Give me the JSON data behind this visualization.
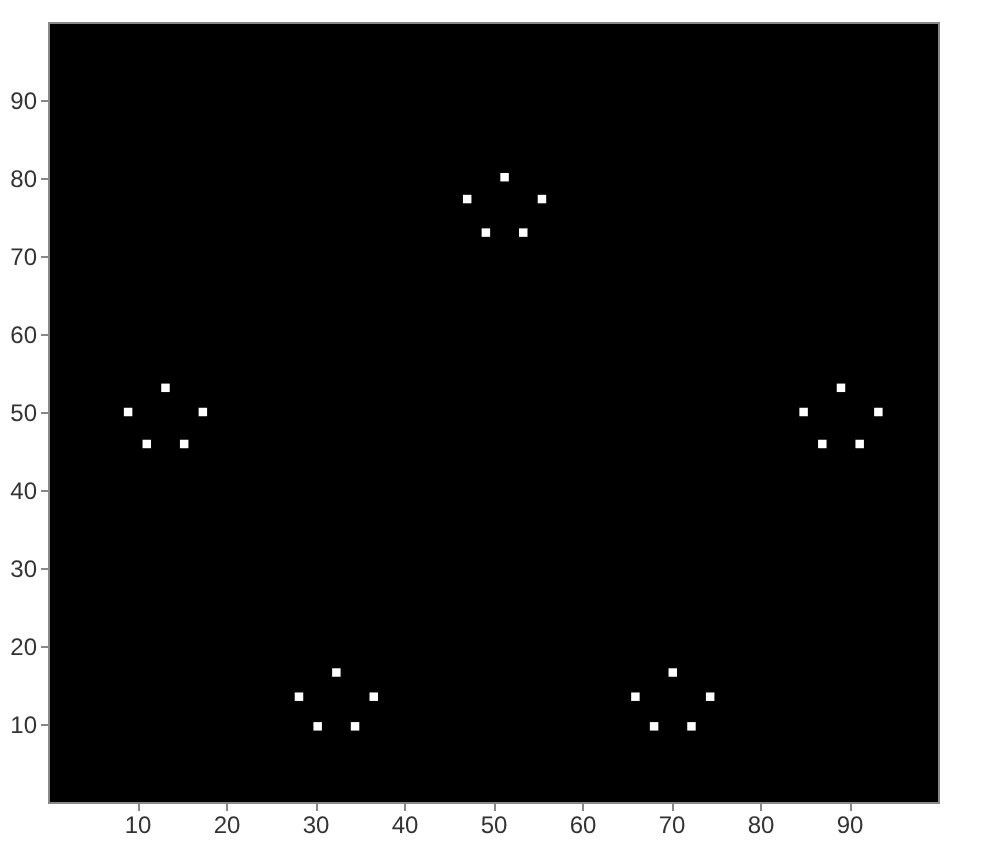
{
  "chart_data": {
    "type": "scatter",
    "marker": "square",
    "color": "#ffffff",
    "x": [
      51.3,
      47.1,
      55.5,
      49.2,
      53.4,
      13.2,
      9.0,
      17.4,
      11.1,
      15.3,
      89.1,
      84.9,
      93.3,
      87.0,
      91.2,
      32.4,
      28.2,
      36.6,
      30.3,
      34.5,
      70.2,
      66.0,
      74.4,
      68.1,
      72.3
    ],
    "values": [
      80.1,
      77.3,
      77.3,
      73.0,
      73.0,
      53.1,
      50.0,
      50.0,
      45.9,
      45.9,
      53.1,
      50.0,
      50.0,
      45.9,
      45.9,
      16.6,
      13.5,
      13.5,
      9.7,
      9.7,
      16.6,
      13.5,
      13.5,
      9.7,
      9.7
    ],
    "xlim": [
      0,
      100
    ],
    "ylim": [
      0,
      100
    ],
    "xticks": [
      10,
      20,
      30,
      40,
      50,
      60,
      70,
      80,
      90
    ],
    "yticks": [
      10,
      20,
      30,
      40,
      50,
      60,
      70,
      80,
      90
    ],
    "grid": false
  }
}
